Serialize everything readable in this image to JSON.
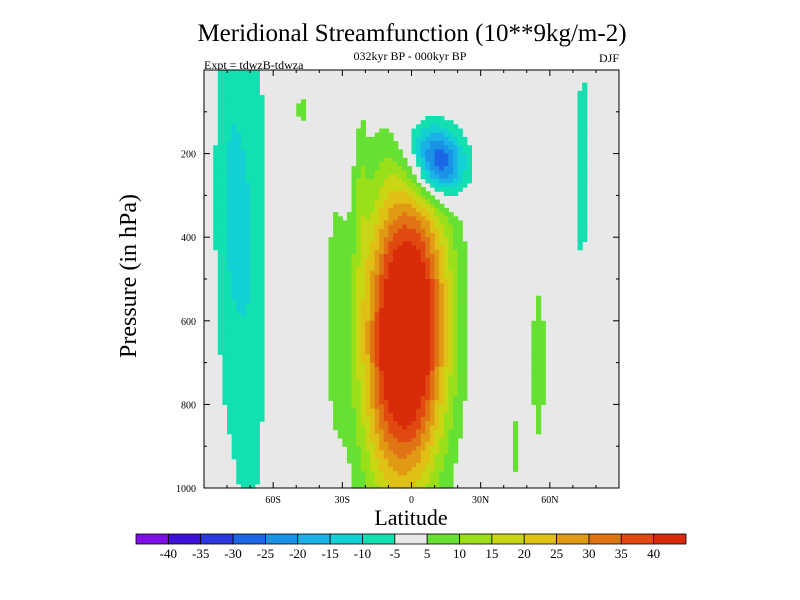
{
  "chart_data": {
    "type": "heatmap",
    "title": "Meridional Streamfunction (10**9kg/m-2)",
    "subtitle": "032kyr BP - 000kyr BP",
    "left_label": "Expt = tdwzB-tdwza",
    "right_label": "DJF",
    "xlabel": "Latitude",
    "ylabel": "Pressure (in hPa)",
    "xlim": [
      -90,
      90
    ],
    "ylim": [
      1000,
      0
    ],
    "x_ticks": [
      {
        "value": -60,
        "label": "60S"
      },
      {
        "value": -30,
        "label": "30S"
      },
      {
        "value": 0,
        "label": "0"
      },
      {
        "value": 30,
        "label": "30N"
      },
      {
        "value": 60,
        "label": "60N"
      }
    ],
    "y_ticks": [
      {
        "value": 200,
        "label": "200"
      },
      {
        "value": 400,
        "label": "400"
      },
      {
        "value": 600,
        "label": "600"
      },
      {
        "value": 800,
        "label": "800"
      },
      {
        "value": 1000,
        "label": "1000"
      }
    ],
    "contour_levels": [
      -40,
      -35,
      -30,
      -25,
      -20,
      -15,
      -10,
      -5,
      5,
      10,
      15,
      20,
      25,
      30,
      35,
      40
    ],
    "colorbar_labels": [
      "-40",
      "-35",
      "-30",
      "-25",
      "-20",
      "-15",
      "-10",
      "-5",
      "5",
      "10",
      "15",
      "20",
      "25",
      "30",
      "35",
      "40"
    ],
    "colorbar_colors": [
      "#7f0fe6",
      "#3f10d8",
      "#2a39e0",
      "#1a66e6",
      "#1a93e6",
      "#1ab2e6",
      "#12d0d4",
      "#12e0b0",
      "#e8e8e8",
      "#66e033",
      "#99e01a",
      "#c8d614",
      "#e0c014",
      "#e09a14",
      "#e07414",
      "#e04a10",
      "#d92a0a"
    ],
    "background_color": "#e8e8e8",
    "features": [
      {
        "name": "cross-equatorial cell",
        "center_lat": -5,
        "center_p": 650,
        "peak_value": 40
      },
      {
        "name": "upper negative cell",
        "center_lat": 12,
        "center_p": 230,
        "peak_value": -30
      }
    ]
  }
}
